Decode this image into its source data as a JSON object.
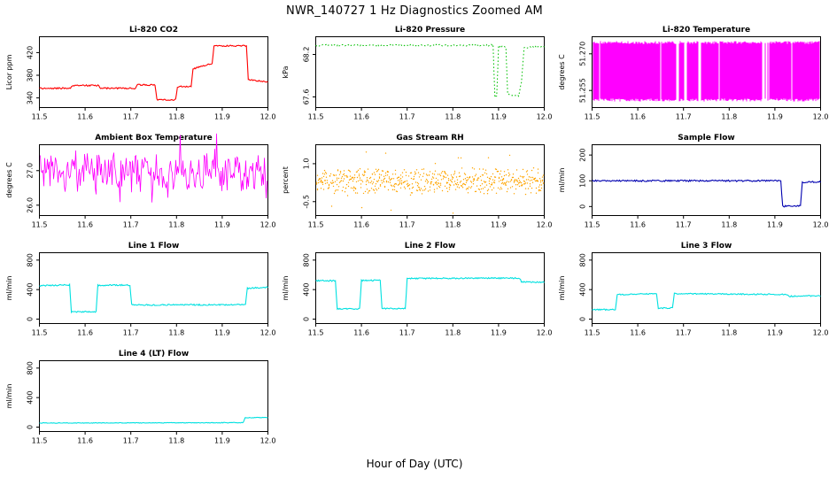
{
  "page_title": "NWR_140727  1 Hz Diagnostics Zoomed AM",
  "xlabel": "Hour of Day (UTC)",
  "x_axis": {
    "min": 11.5,
    "max": 12.0,
    "ticks": [
      "11.5",
      "11.6",
      "11.7",
      "11.8",
      "11.9",
      "12.0"
    ]
  },
  "chart_data": [
    {
      "type": "line",
      "style": "line",
      "title": "Li-820 CO2",
      "ylabel": "Licor ppm",
      "color": "#ff0000",
      "ylim": [
        323,
        448
      ],
      "yticks": [
        "340",
        "380",
        "420"
      ],
      "noise": 1.2,
      "points": [
        [
          11.5,
          357
        ],
        [
          11.568,
          357
        ],
        [
          11.572,
          362
        ],
        [
          11.63,
          362
        ],
        [
          11.634,
          357
        ],
        [
          11.71,
          357
        ],
        [
          11.714,
          363
        ],
        [
          11.753,
          363
        ],
        [
          11.757,
          337
        ],
        [
          11.798,
          337
        ],
        [
          11.802,
          360
        ],
        [
          11.832,
          360
        ],
        [
          11.836,
          391
        ],
        [
          11.878,
          401
        ],
        [
          11.882,
          432
        ],
        [
          11.953,
          432
        ],
        [
          11.957,
          372
        ],
        [
          12.0,
          368
        ]
      ]
    },
    {
      "type": "line",
      "style": "dotted-line",
      "title": "Li-820 Pressure",
      "ylabel": "kPa",
      "color": "#00c000",
      "ylim": [
        67.45,
        68.45
      ],
      "yticks": [
        "67.6",
        "68.2"
      ],
      "noise": 0.012,
      "points": [
        [
          11.5,
          68.33
        ],
        [
          11.888,
          68.33
        ],
        [
          11.892,
          67.6
        ],
        [
          11.896,
          67.6
        ],
        [
          11.9,
          68.31
        ],
        [
          11.916,
          68.31
        ],
        [
          11.92,
          67.63
        ],
        [
          11.944,
          67.62
        ],
        [
          11.95,
          67.8
        ],
        [
          11.956,
          68.3
        ],
        [
          12.0,
          68.31
        ]
      ]
    },
    {
      "type": "scatter",
      "style": "dense-vertical",
      "title": "Li-820 Temperature",
      "ylabel": "degrees C",
      "color": "#ff00ff",
      "ylim": [
        51.248,
        51.277
      ],
      "yticks": [
        "51.255",
        "51.270"
      ],
      "band": [
        51.2505,
        51.2752
      ],
      "gap_fraction": 0.05
    },
    {
      "type": "line",
      "style": "noise-line",
      "title": "Ambient Box Temperature",
      "ylabel": "degrees C",
      "color": "#ff00ff",
      "ylim": [
        25.7,
        27.75
      ],
      "yticks": [
        "26.0",
        "27.0"
      ],
      "mean": 26.92,
      "amplitude": 0.58
    },
    {
      "type": "scatter",
      "style": "noise-dots",
      "title": "Gas Stream RH",
      "ylabel": "percent",
      "color": "#ffa500",
      "ylim": [
        -1.05,
        1.75
      ],
      "yticks": [
        "-0.5",
        "1.0"
      ],
      "mean": 0.3,
      "amplitude": 0.45
    },
    {
      "type": "line",
      "style": "line",
      "title": "Sample Flow",
      "ylabel": "ml/min",
      "color": "#0000b0",
      "ylim": [
        -35,
        240
      ],
      "yticks": [
        "0",
        "100",
        "200"
      ],
      "noise": 3,
      "points": [
        [
          11.5,
          100
        ],
        [
          11.913,
          100
        ],
        [
          11.917,
          1
        ],
        [
          11.956,
          2
        ],
        [
          11.96,
          94
        ],
        [
          12.0,
          96
        ]
      ]
    },
    {
      "type": "line",
      "style": "line",
      "title": "Line 1 Flow",
      "ylabel": "ml/min",
      "color": "#00e0e0",
      "ylim": [
        -60,
        900
      ],
      "yticks": [
        "0",
        "400",
        "800"
      ],
      "noise": 9,
      "points": [
        [
          11.5,
          452
        ],
        [
          11.566,
          463
        ],
        [
          11.57,
          100
        ],
        [
          11.624,
          100
        ],
        [
          11.628,
          458
        ],
        [
          11.698,
          462
        ],
        [
          11.702,
          192
        ],
        [
          11.951,
          196
        ],
        [
          11.955,
          418
        ],
        [
          12.0,
          432
        ]
      ]
    },
    {
      "type": "line",
      "style": "line",
      "title": "Line 2 Flow",
      "ylabel": "ml/min",
      "color": "#00e0e0",
      "ylim": [
        -60,
        900
      ],
      "yticks": [
        "0",
        "400",
        "800"
      ],
      "noise": 9,
      "points": [
        [
          11.5,
          520
        ],
        [
          11.543,
          520
        ],
        [
          11.547,
          140
        ],
        [
          11.596,
          140
        ],
        [
          11.6,
          522
        ],
        [
          11.641,
          526
        ],
        [
          11.645,
          142
        ],
        [
          11.696,
          142
        ],
        [
          11.7,
          552
        ],
        [
          11.946,
          556
        ],
        [
          11.95,
          506
        ],
        [
          12.0,
          502
        ]
      ]
    },
    {
      "type": "line",
      "style": "line",
      "title": "Line 3 Flow",
      "ylabel": "ml/min",
      "color": "#00e0e0",
      "ylim": [
        -60,
        900
      ],
      "yticks": [
        "0",
        "400",
        "800"
      ],
      "noise": 8,
      "points": [
        [
          11.5,
          128
        ],
        [
          11.551,
          128
        ],
        [
          11.555,
          332
        ],
        [
          11.641,
          346
        ],
        [
          11.645,
          150
        ],
        [
          11.676,
          150
        ],
        [
          11.68,
          346
        ],
        [
          11.928,
          334
        ],
        [
          11.932,
          310
        ],
        [
          12.0,
          316
        ]
      ]
    },
    {
      "type": "line",
      "style": "line",
      "title": "Line 4 (LT) Flow",
      "ylabel": "ml/min",
      "color": "#00e0e0",
      "ylim": [
        -60,
        900
      ],
      "yticks": [
        "0",
        "400",
        "800"
      ],
      "noise": 4,
      "points": [
        [
          11.5,
          55
        ],
        [
          11.946,
          60
        ],
        [
          11.95,
          128
        ],
        [
          12.0,
          130
        ]
      ]
    }
  ]
}
